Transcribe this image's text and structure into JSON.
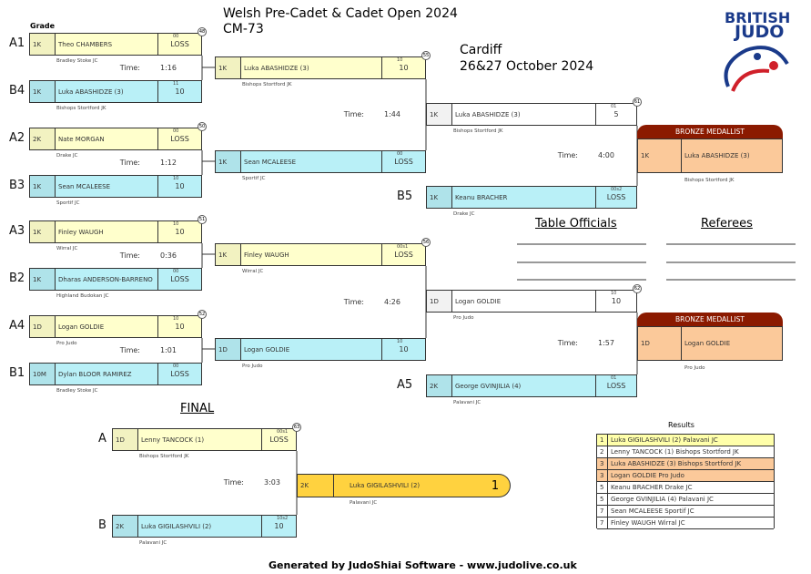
{
  "header": {
    "grade_label": "Grade",
    "title": "Welsh Pre-Cadet & Cadet Open 2024",
    "category": "CM-73",
    "location": "Cardiff",
    "dates": "26&27 October 2024",
    "logo_top": "BRITISH",
    "logo_bottom": "JUDO"
  },
  "time_label": "Time:",
  "rounds": [
    {
      "entries": [
        {
          "label": "A1",
          "grade": "1K",
          "name": "Theo CHAMBERS",
          "club": "Bradley Stoke JC",
          "score": "LOSS",
          "note": "00",
          "match": "48",
          "time": "1:16",
          "fill": "#ffffcc"
        },
        {
          "label": "B4",
          "grade": "1K",
          "name": "Luka ABASHIDZE (3)",
          "club": "Bishops Stortford JK",
          "score": "10",
          "note": "11",
          "fill": "#b9f0f7"
        },
        {
          "label": "A2",
          "grade": "2K",
          "name": "Nate MORGAN",
          "club": "Drake JC",
          "score": "LOSS",
          "note": "00",
          "match": "50",
          "time": "1:12",
          "fill": "#ffffcc"
        },
        {
          "label": "B3",
          "grade": "1K",
          "name": "Sean MCALEESE",
          "club": "Sportif JC",
          "score": "10",
          "note": "10",
          "fill": "#b9f0f7"
        },
        {
          "label": "A3",
          "grade": "1K",
          "name": "Finley WAUGH",
          "club": "Wirral JC",
          "score": "10",
          "note": "10",
          "match": "51",
          "time": "0:36",
          "fill": "#ffffcc"
        },
        {
          "label": "B2",
          "grade": "1K",
          "name": "Dharas ANDERSON-BARRENO",
          "club": "Highland Budokan JC",
          "score": "LOSS",
          "note": "00",
          "fill": "#b9f0f7"
        },
        {
          "label": "A4",
          "grade": "1D",
          "name": "Logan GOLDIE",
          "club": "Pro Judo",
          "score": "10",
          "note": "10",
          "match": "52",
          "time": "1:01",
          "fill": "#ffffcc"
        },
        {
          "label": "B1",
          "grade": "10M",
          "name": "Dylan BLOOR RAMIREZ",
          "club": "Bradley Stoke JC",
          "score": "LOSS",
          "note": "00",
          "fill": "#b9f0f7"
        }
      ]
    },
    {
      "entries": [
        {
          "grade": "1K",
          "name": "Luka ABASHIDZE (3)",
          "club": "Bishops Stortford JK",
          "score": "10",
          "note": "10",
          "match": "55",
          "time": "1:44",
          "fill": "#ffffcc"
        },
        {
          "grade": "1K",
          "name": "Sean MCALEESE",
          "club": "Sportif JC",
          "score": "LOSS",
          "note": "00",
          "fill": "#b9f0f7"
        },
        {
          "grade": "1K",
          "name": "Finley WAUGH",
          "club": "Wirral JC",
          "score": "LOSS",
          "note": "00s1",
          "match": "56",
          "time": "4:26",
          "fill": "#ffffcc"
        },
        {
          "grade": "1D",
          "name": "Logan GOLDIE",
          "club": "Pro Judo",
          "score": "10",
          "note": "10",
          "fill": "#b9f0f7"
        }
      ]
    },
    {
      "entries": [
        {
          "grade": "1K",
          "name": "Luka ABASHIDZE (3)",
          "club": "Bishops Stortford JK",
          "score": "5",
          "note": "01",
          "match": "61",
          "time": "4:00",
          "fill": "#ffffff"
        },
        {
          "label": "B5",
          "grade": "1K",
          "name": "Keanu BRACHER",
          "club": "Drake JC",
          "score": "LOSS",
          "note": "00s2",
          "fill": "#b9f0f7"
        },
        {
          "grade": "1D",
          "name": "Logan GOLDIE",
          "club": "Pro Judo",
          "score": "10",
          "note": "10",
          "match": "62",
          "time": "1:57",
          "fill": "#ffffff"
        },
        {
          "label": "A5",
          "grade": "2K",
          "name": "George GVINJILIA (4)",
          "club": "Palavani JC",
          "score": "LOSS",
          "note": "01",
          "fill": "#b9f0f7"
        }
      ]
    },
    {
      "entries": [
        {
          "label": "A",
          "grade": "1D",
          "name": "Lenny TANCOCK (1)",
          "club": "Bishops Stortford JK",
          "score": "LOSS",
          "note": "00s1",
          "match": "63",
          "time": "3:03",
          "fill": "#ffffcc"
        },
        {
          "label": "B",
          "grade": "2K",
          "name": "Luka GIGILASHVILI (2)",
          "club": "Palavani JC",
          "score": "10",
          "note": "10s2",
          "fill": "#b9f0f7"
        }
      ]
    }
  ],
  "final_label": "FINAL",
  "bronze": {
    "label": "BRONZE MEDALLIST",
    "entries": [
      {
        "grade": "1K",
        "name": "Luka ABASHIDZE (3)",
        "club": "Bishops Stortford JK"
      },
      {
        "grade": "1D",
        "name": "Logan GOLDIE",
        "club": "Pro Judo"
      }
    ]
  },
  "winner": {
    "grade": "2K",
    "name": "Luka GIGILASHVILI (2)",
    "club": "Palavani JC",
    "place": "1"
  },
  "results": {
    "title": "Results",
    "rows": [
      {
        "rank": "1",
        "text": "Luka GIGILASHVILI (2) Palavani JC",
        "fill": "#ffffaa"
      },
      {
        "rank": "2",
        "text": "Lenny TANCOCK (1) Bishops Stortford JK",
        "fill": "#ffffff"
      },
      {
        "rank": "3",
        "text": "Luka ABASHIDZE (3) Bishops Stortford JK",
        "fill": "#fbc99a"
      },
      {
        "rank": "3",
        "text": "Logan GOLDIE Pro Judo",
        "fill": "#fbc99a"
      },
      {
        "rank": "5",
        "text": "Keanu BRACHER Drake JC",
        "fill": "#ffffff"
      },
      {
        "rank": "5",
        "text": "George GVINJILIA (4) Palavani JC",
        "fill": "#ffffff"
      },
      {
        "rank": "7",
        "text": "Sean MCALEESE Sportif JC",
        "fill": "#ffffff"
      },
      {
        "rank": "7",
        "text": "Finley WAUGH Wirral JC",
        "fill": "#ffffff"
      }
    ]
  },
  "officials": {
    "table": "Table Officials",
    "referees": "Referees"
  },
  "footer": "Generated by JudoShiai Software - www.judolive.co.uk"
}
